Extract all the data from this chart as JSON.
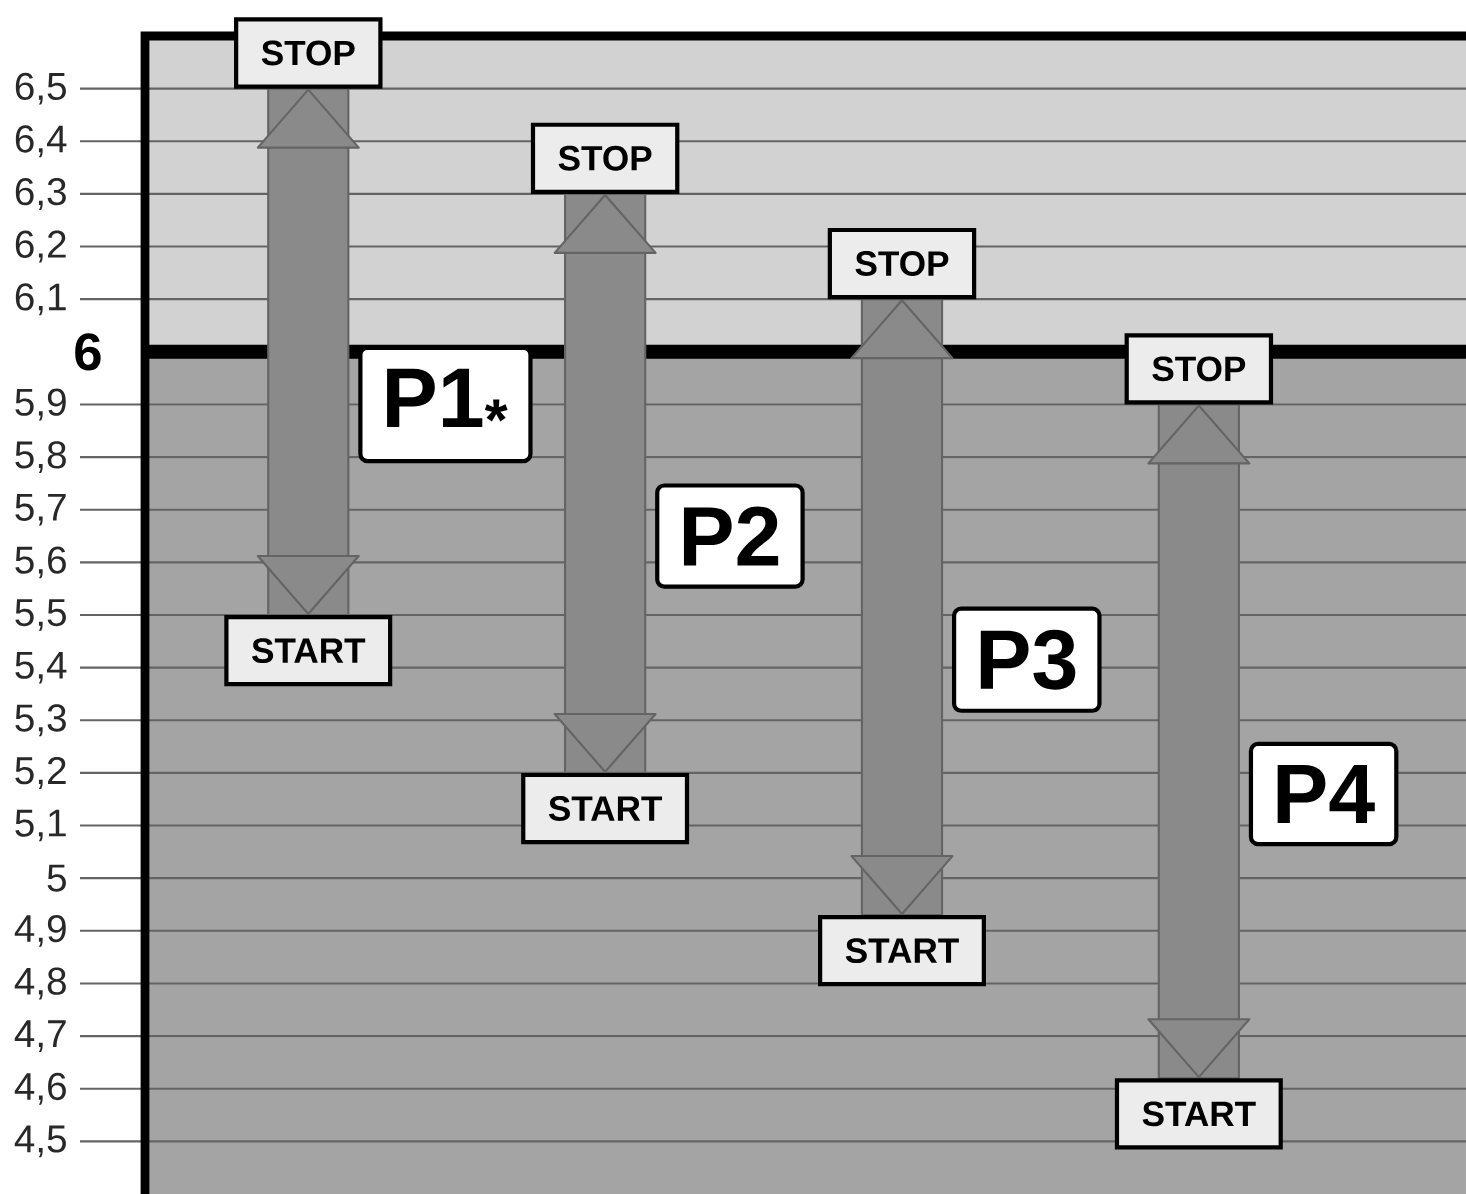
{
  "chart_data": {
    "type": "bar",
    "categories": [
      "P1$_{*}$",
      "P2",
      "P3",
      "P4"
    ],
    "base": [
      5.5,
      5.2,
      4.93,
      4.62
    ],
    "values": [
      1.0,
      1.1,
      1.17,
      1.28
    ],
    "color": "#8a8a8a",
    "ylim": [
      4.4,
      6.6
    ],
    "yticks": [
      {
        "value": 4.5,
        "label": "4,5"
      },
      {
        "value": 4.6,
        "label": "4,6"
      },
      {
        "value": 4.7,
        "label": "4,7"
      },
      {
        "value": 4.8,
        "label": "4,8"
      },
      {
        "value": 4.9,
        "label": "4,9"
      },
      5,
      {
        "value": 5.1,
        "label": "5,1"
      },
      {
        "value": 5.2,
        "label": "5,2"
      },
      {
        "value": 5.3,
        "label": "5,3"
      },
      {
        "value": 5.4,
        "label": "5,4"
      },
      {
        "value": 5.5,
        "label": "5,5"
      },
      {
        "value": 5.6,
        "label": "5,6"
      },
      {
        "value": 5.7,
        "label": "5,7"
      },
      {
        "value": 5.8,
        "label": "5,8"
      },
      {
        "value": 5.9,
        "label": "5,9"
      },
      {
        "value": 6.1,
        "label": "6,1"
      },
      {
        "value": 6.2,
        "label": "6,2"
      },
      {
        "value": 6.3,
        "label": "6,3"
      },
      {
        "value": 6.4,
        "label": "6,4"
      },
      {
        "value": 6.5,
        "label": "6,5"
      }
    ],
    "grid": "y",
    "ref_lines": [
      {
        "axis": "y",
        "value": 6,
        "label": "6"
      }
    ],
    "bands": [
      {
        "axis": "y",
        "from": 6,
        "to": 6.6,
        "color": "#d2d2d2"
      },
      {
        "axis": "y",
        "from": 4.4,
        "to": 6,
        "color": "#a4a4a4"
      }
    ],
    "tick_labels": "y",
    "annotations": [
      "STOP",
      "START",
      "STOP",
      "START",
      "STOP",
      "START",
      "STOP",
      "START"
    ]
  }
}
